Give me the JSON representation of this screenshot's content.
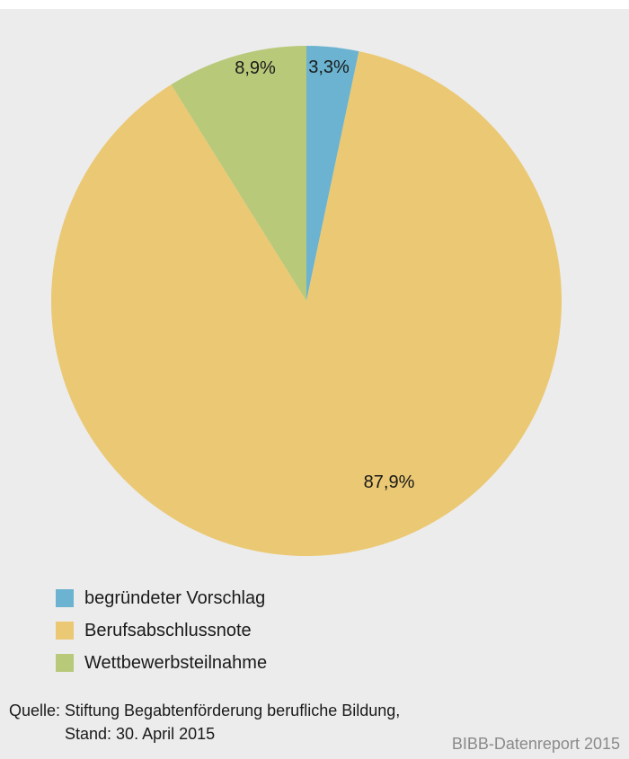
{
  "chart_data": {
    "type": "pie",
    "title": "",
    "slices": [
      {
        "label": "begründeter Vorschlag",
        "value": 3.3,
        "display": "3,3%",
        "color": "#6bb3d0"
      },
      {
        "label": "Berufsabschlussnote",
        "value": 87.9,
        "display": "87,9%",
        "color": "#ebc873"
      },
      {
        "label": "Wettbewerbsteilnahme",
        "value": 8.9,
        "display": "8,9%",
        "color": "#b8c97a"
      }
    ],
    "legend_position": "bottom-left"
  },
  "source": {
    "label": "Quelle:",
    "line1": "Stiftung Begabtenförderung berufliche Bildung,",
    "line2": "Stand: 30. April 2015"
  },
  "brand": "BIBB-Datenreport 2015"
}
